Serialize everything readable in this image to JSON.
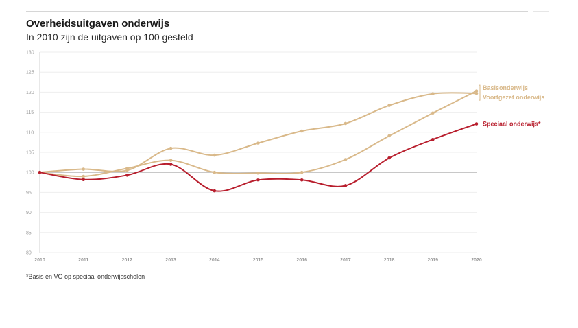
{
  "header": {
    "title": "Overheidsuitgaven onderwijs",
    "subtitle": "In 2010 zijn de uitgaven op 100 gesteld"
  },
  "footnote": "*Basis en VO op speciaal onderwijsscholen",
  "colors": {
    "tan": "#d9b98a",
    "red": "#b81e2d",
    "grid": "#eeeeee",
    "baseline": "#b5b5b5",
    "axis_text": "#9a9a9a"
  },
  "chart_data": {
    "type": "line",
    "x": [
      2010,
      2011,
      2012,
      2013,
      2014,
      2015,
      2016,
      2017,
      2018,
      2019,
      2020
    ],
    "ylim": [
      80,
      130
    ],
    "yticks": [
      80,
      85,
      90,
      95,
      100,
      105,
      110,
      115,
      120,
      125,
      130
    ],
    "baseline": 100,
    "grid": true,
    "legend": "direct labels at line ends",
    "series": [
      {
        "name": "Basisonderwijs",
        "color": "#d9b98a",
        "values": [
          100,
          100.8,
          100.5,
          106,
          104.3,
          107.3,
          110.3,
          112.2,
          116.7,
          119.6,
          119.7
        ]
      },
      {
        "name": "Voortgezet onderwijs",
        "color": "#d9b98a",
        "values": [
          100,
          99,
          101,
          103,
          100,
          99.8,
          100,
          103.2,
          109.1,
          114.8,
          120.3
        ]
      },
      {
        "name": "Speciaal onderwijs*",
        "color": "#b81e2d",
        "values": [
          100,
          98.2,
          99.3,
          102,
          95.4,
          98.1,
          98.1,
          96.7,
          103.6,
          108.2,
          112.1
        ]
      }
    ]
  }
}
